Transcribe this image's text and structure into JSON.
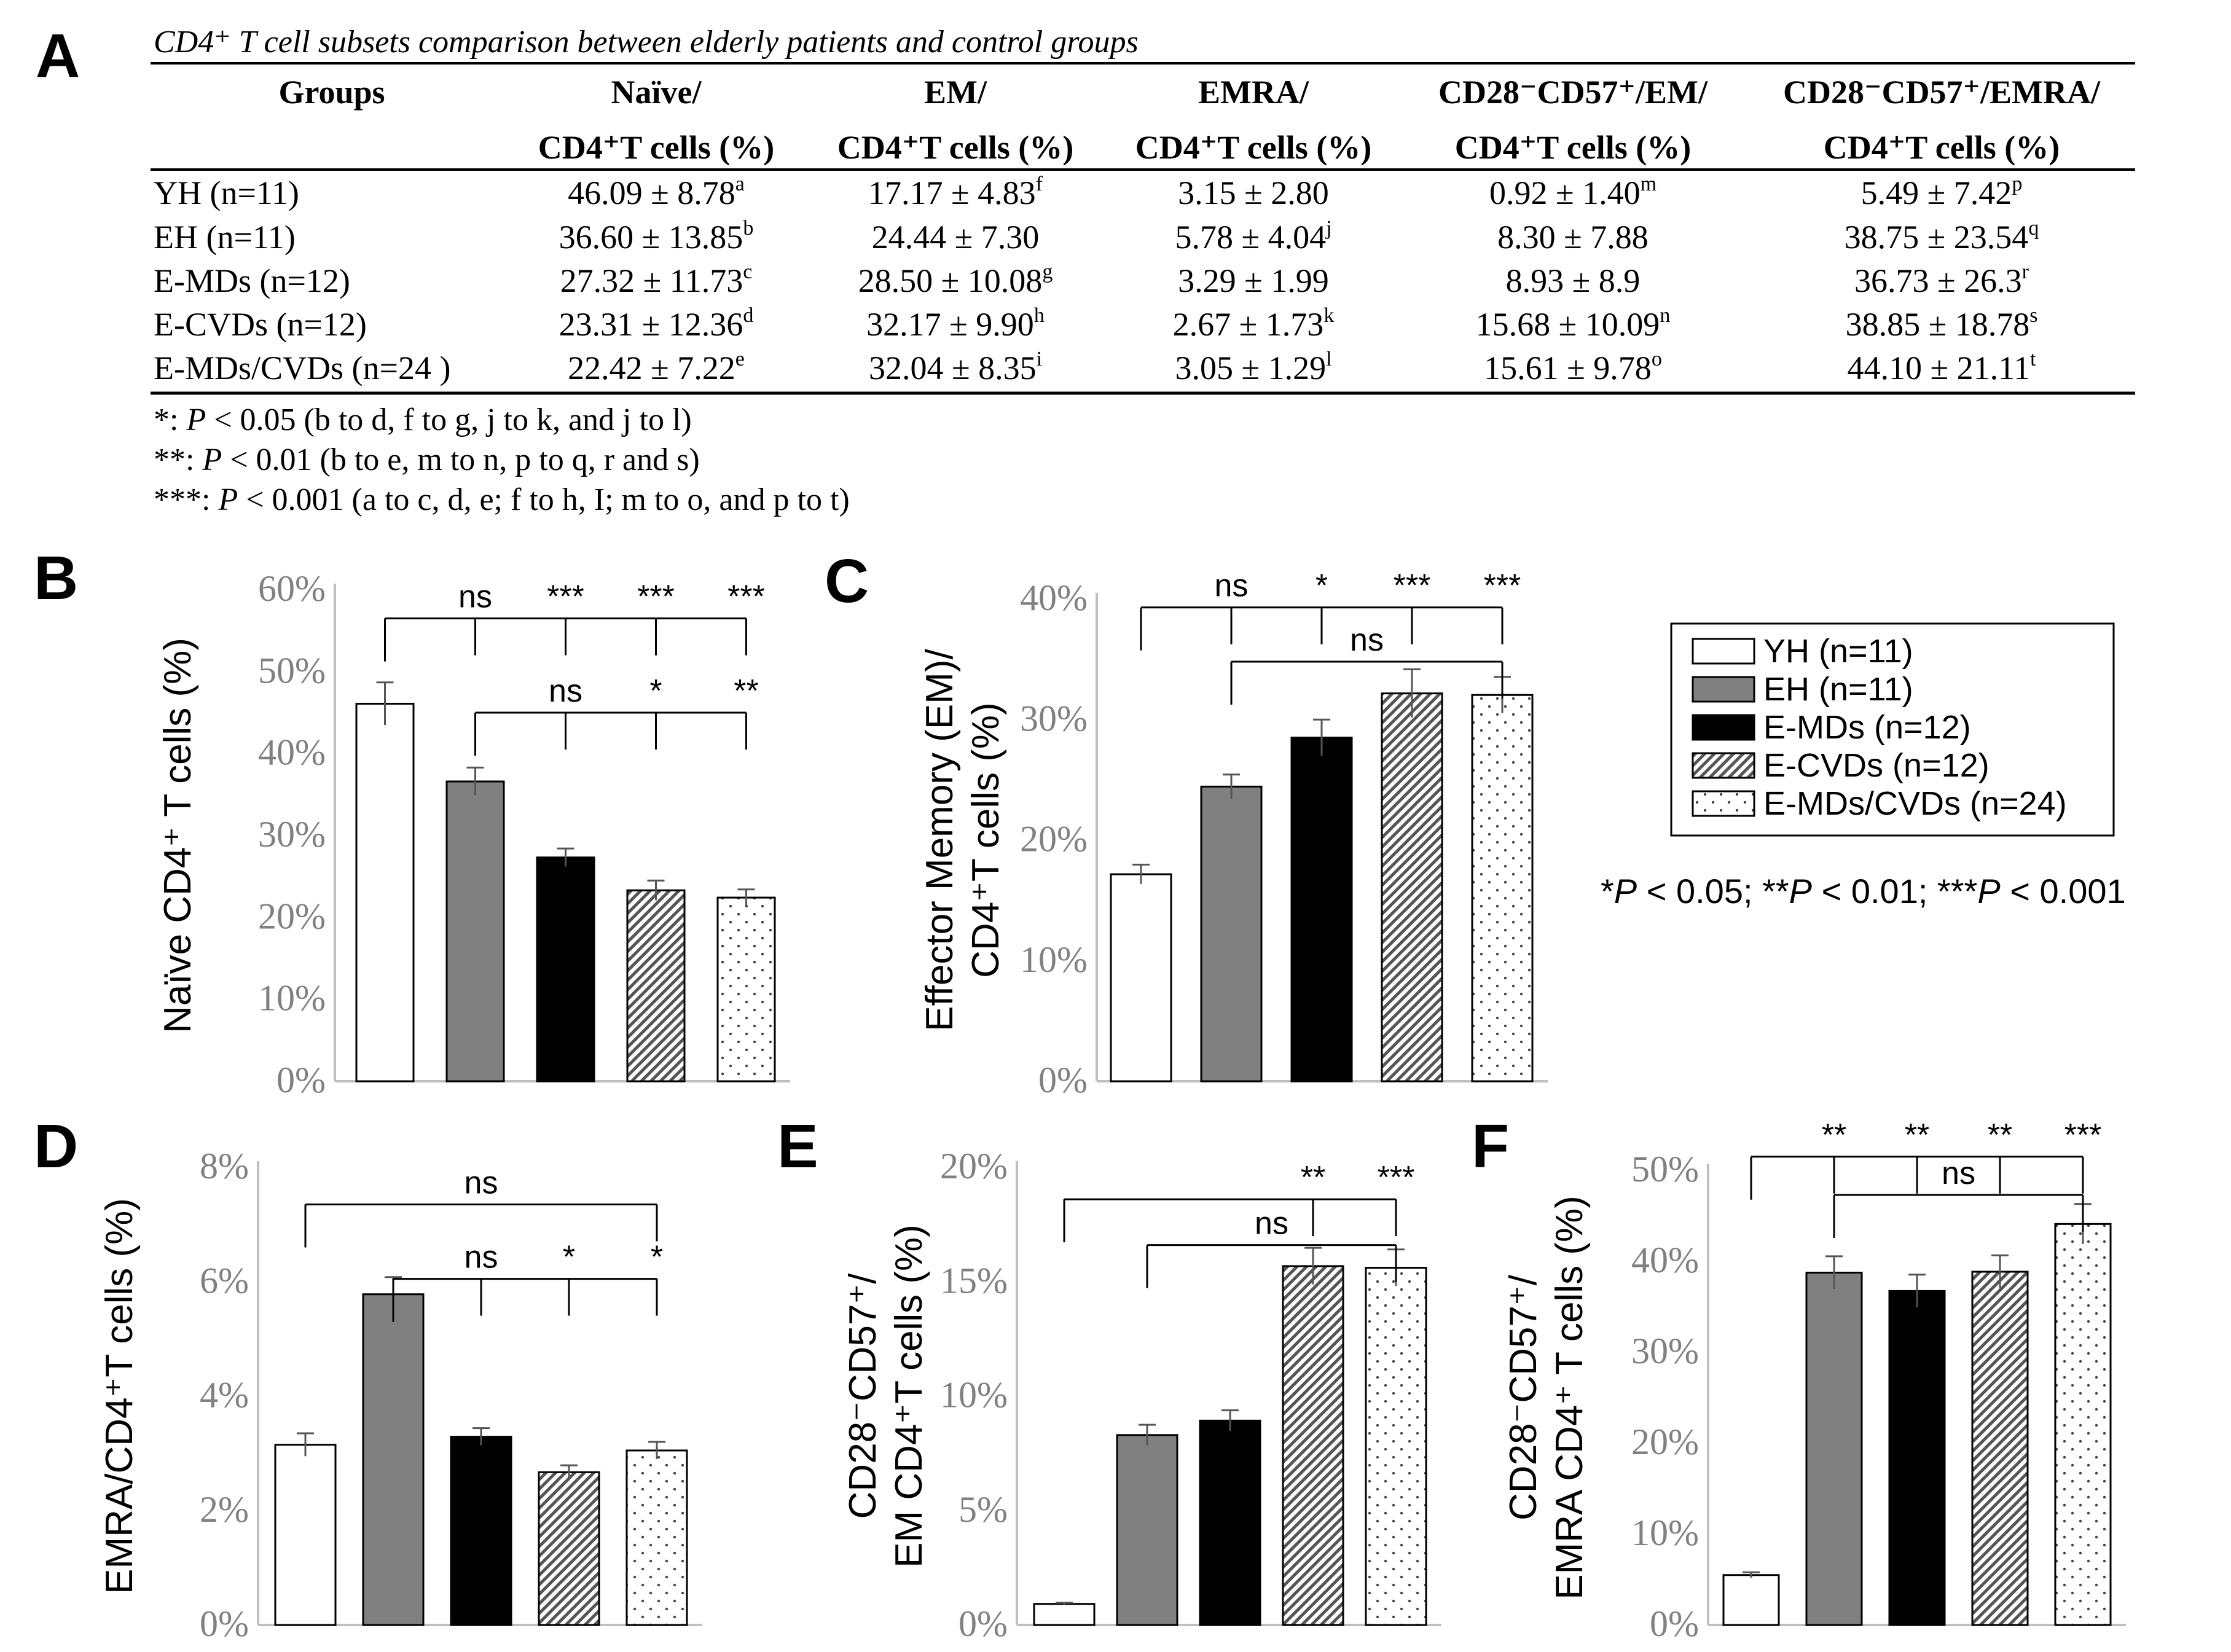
{
  "panel_labels": [
    "A",
    "B",
    "C",
    "D",
    "E",
    "F"
  ],
  "table": {
    "caption": "CD4⁺ T cell subsets comparison between elderly patients and control groups",
    "headers": [
      {
        "line1": "Groups",
        "line2": ""
      },
      {
        "line1": "Naïve/",
        "line2": "CD4⁺T cells (%)"
      },
      {
        "line1": "EM/",
        "line2": "CD4⁺T cells (%)"
      },
      {
        "line1": "EMRA/",
        "line2": "CD4⁺T cells (%)"
      },
      {
        "line1": "CD28⁻CD57⁺/EM/",
        "line2": "CD4⁺T cells (%)"
      },
      {
        "line1": "CD28⁻CD57⁺/EMRA/",
        "line2": "CD4⁺T cells (%)"
      }
    ],
    "rows": [
      {
        "group": "YH (n=11)",
        "cells": [
          {
            "v": "46.09 ± 8.78",
            "sup": "a"
          },
          {
            "v": "17.17 ± 4.83",
            "sup": "f"
          },
          {
            "v": "3.15 ± 2.80",
            "sup": ""
          },
          {
            "v": "0.92 ± 1.40",
            "sup": "m"
          },
          {
            "v": "5.49 ± 7.42",
            "sup": "p"
          }
        ]
      },
      {
        "group": "EH (n=11)",
        "cells": [
          {
            "v": "36.60 ± 13.85",
            "sup": "b"
          },
          {
            "v": "24.44 ± 7.30",
            "sup": ""
          },
          {
            "v": "5.78 ± 4.04",
            "sup": "j"
          },
          {
            "v": "8.30 ± 7.88",
            "sup": ""
          },
          {
            "v": "38.75 ± 23.54",
            "sup": "q"
          }
        ]
      },
      {
        "group": "E-MDs (n=12)",
        "cells": [
          {
            "v": "27.32 ± 11.73",
            "sup": "c"
          },
          {
            "v": "28.50 ± 10.08",
            "sup": "g"
          },
          {
            "v": "3.29 ± 1.99",
            "sup": ""
          },
          {
            "v": "8.93 ± 8.9",
            "sup": ""
          },
          {
            "v": "36.73 ± 26.3",
            "sup": "r"
          }
        ]
      },
      {
        "group": "E-CVDs (n=12)",
        "cells": [
          {
            "v": "23.31 ± 12.36",
            "sup": "d"
          },
          {
            "v": "32.17 ± 9.90",
            "sup": "h"
          },
          {
            "v": "2.67 ± 1.73",
            "sup": "k"
          },
          {
            "v": "15.68 ± 10.09",
            "sup": "n"
          },
          {
            "v": "38.85 ± 18.78",
            "sup": "s"
          }
        ]
      },
      {
        "group": "E-MDs/CVDs (n=24 )",
        "cells": [
          {
            "v": "22.42 ± 7.22",
            "sup": "e"
          },
          {
            "v": "32.04 ± 8.35",
            "sup": "i"
          },
          {
            "v": "3.05 ± 1.29",
            "sup": "l"
          },
          {
            "v": "15.61 ± 9.78",
            "sup": "o"
          },
          {
            "v": "44.10 ± 21.11",
            "sup": "t"
          }
        ]
      }
    ],
    "footnotes": [
      {
        "stars": "*: ",
        "rest": " < 0.05 (b to d, f to g, j to k, and j to l)"
      },
      {
        "stars": "**: ",
        "rest": " < 0.01 (b to e, m to n, p to q, r and s)"
      },
      {
        "stars": "***: ",
        "rest": " < 0.001 (a to c, d, e; f to h, I; m to o, and p to t)"
      }
    ]
  },
  "legend": {
    "position": "right",
    "items": [
      "YH (n=11)",
      "EH (n=11)",
      "E-MDs (n=12)",
      "E-CVDs (n=12)",
      "E-MDs/CVDs (n=24)"
    ]
  },
  "significance_key": "*P < 0.05; **P < 0.01; ***P < 0.001",
  "colors": {
    "yh": "#ffffff",
    "eh": "#808080",
    "emds": "#000000",
    "ecvds": "#b3b3b3",
    "emdscvds": "#ffffff",
    "axis": "#bfbfbf",
    "tick_text": "#808080"
  },
  "chart_data": [
    {
      "type": "bar",
      "panel": "B",
      "categories": [
        "YH (n=11)",
        "EH (n=11)",
        "E-MDs (n=12)",
        "E-CVDs (n=12)",
        "E-MDs/CVDs (n=24)"
      ],
      "values": [
        46.09,
        36.6,
        27.32,
        23.31,
        22.42
      ],
      "errors": [
        2.6,
        1.7,
        1.1,
        1.2,
        1.0
      ],
      "ylabel": "Naïve CD4⁺ T cells (%)",
      "ylim": [
        0,
        60
      ],
      "yticks": [
        0,
        10,
        20,
        30,
        40,
        50,
        60
      ],
      "annotations": [
        {
          "text": "ns",
          "level": 56.5,
          "from": 0,
          "to": 1
        },
        {
          "text": "***",
          "level": 56.5,
          "from": 0,
          "to": 2
        },
        {
          "text": "***",
          "level": 56.5,
          "from": 0,
          "to": 3
        },
        {
          "text": "***",
          "level": 56.5,
          "from": 0,
          "to": 4
        },
        {
          "text": "ns",
          "level": 45.0,
          "from": 1,
          "to": 2
        },
        {
          "text": "*",
          "level": 45.0,
          "from": 1,
          "to": 3
        },
        {
          "text": "**",
          "level": 45.0,
          "from": 1,
          "to": 4
        }
      ]
    },
    {
      "type": "bar",
      "panel": "C",
      "categories": [
        "YH (n=11)",
        "EH (n=11)",
        "E-MDs (n=12)",
        "E-CVDs (n=12)",
        "E-MDs/CVDs (n=24)"
      ],
      "values": [
        17.17,
        24.44,
        28.5,
        32.17,
        32.04
      ],
      "errors": [
        0.8,
        1.0,
        1.5,
        2.0,
        1.5
      ],
      "ylabel": "Effector Memory (EM)/ CD4⁺T cells (%)",
      "ylim": [
        0,
        40
      ],
      "yticks": [
        0,
        10,
        20,
        30,
        40
      ],
      "annotations": [
        {
          "text": "ns",
          "level": 39.3,
          "from": 0,
          "to": 1
        },
        {
          "text": "*",
          "level": 39.3,
          "from": 0,
          "to": 2
        },
        {
          "text": "***",
          "level": 39.3,
          "from": 0,
          "to": 3
        },
        {
          "text": "***",
          "level": 39.3,
          "from": 0,
          "to": 4
        },
        {
          "text": "ns",
          "level": 34.8,
          "from": 1,
          "to": 4
        }
      ]
    },
    {
      "type": "bar",
      "panel": "D",
      "categories": [
        "YH (n=11)",
        "EH (n=11)",
        "E-MDs (n=12)",
        "E-CVDs (n=12)",
        "E-MDs/CVDs (n=24)"
      ],
      "values": [
        3.15,
        5.78,
        3.29,
        2.67,
        3.05
      ],
      "errors": [
        0.2,
        0.3,
        0.15,
        0.12,
        0.15
      ],
      "ylabel": "EMRA/CD4⁺T cells (%)",
      "ylim": [
        0,
        8
      ],
      "yticks": [
        0,
        2,
        4,
        6,
        8
      ],
      "annotations": [
        {
          "text": "ns",
          "level": 7.35,
          "from": 0,
          "to": 4
        },
        {
          "text": "ns",
          "level": 6.05,
          "from": 1,
          "to": 2
        },
        {
          "text": "*",
          "level": 6.05,
          "from": 1,
          "to": 3
        },
        {
          "text": "*",
          "level": 6.05,
          "from": 1,
          "to": 4
        }
      ]
    },
    {
      "type": "bar",
      "panel": "E",
      "categories": [
        "YH (n=11)",
        "EH (n=11)",
        "E-MDs (n=12)",
        "E-CVDs (n=12)",
        "E-MDs/CVDs (n=24)"
      ],
      "values": [
        0.92,
        8.3,
        8.93,
        15.68,
        15.61
      ],
      "errors": [
        0.05,
        0.45,
        0.45,
        0.8,
        0.8
      ],
      "ylabel": "CD28⁻CD57⁺/ EM CD4⁺T cells (%)",
      "ylim": [
        0,
        20
      ],
      "yticks": [
        0,
        5,
        10,
        15,
        20
      ],
      "annotations": [
        {
          "text": "**",
          "level": 18.6,
          "from": 0,
          "to": 3
        },
        {
          "text": "***",
          "level": 18.6,
          "from": 0,
          "to": 4
        },
        {
          "text": "ns",
          "level": 16.6,
          "from": 1,
          "to": 4
        }
      ]
    },
    {
      "type": "bar",
      "panel": "F",
      "categories": [
        "YH (n=11)",
        "EH (n=11)",
        "E-MDs (n=12)",
        "E-CVDs (n=12)",
        "E-MDs/CVDs (n=24)"
      ],
      "values": [
        5.49,
        38.75,
        36.73,
        38.85,
        44.1
      ],
      "errors": [
        0.3,
        1.8,
        1.8,
        1.8,
        2.2
      ],
      "ylabel": "CD28⁻CD57⁺/ EMRA CD4⁺ T cells (%)",
      "ylim": [
        0,
        50
      ],
      "yticks": [
        0,
        10,
        20,
        30,
        40,
        50
      ],
      "annotations": [
        {
          "text": "**",
          "level": 51.5,
          "from": 0,
          "to": 1
        },
        {
          "text": "**",
          "level": 51.5,
          "from": 0,
          "to": 2
        },
        {
          "text": "**",
          "level": 51.5,
          "from": 0,
          "to": 3
        },
        {
          "text": "***",
          "level": 51.5,
          "from": 0,
          "to": 4
        },
        {
          "text": "ns",
          "level": 47.3,
          "from": 1,
          "to": 4
        }
      ]
    }
  ]
}
